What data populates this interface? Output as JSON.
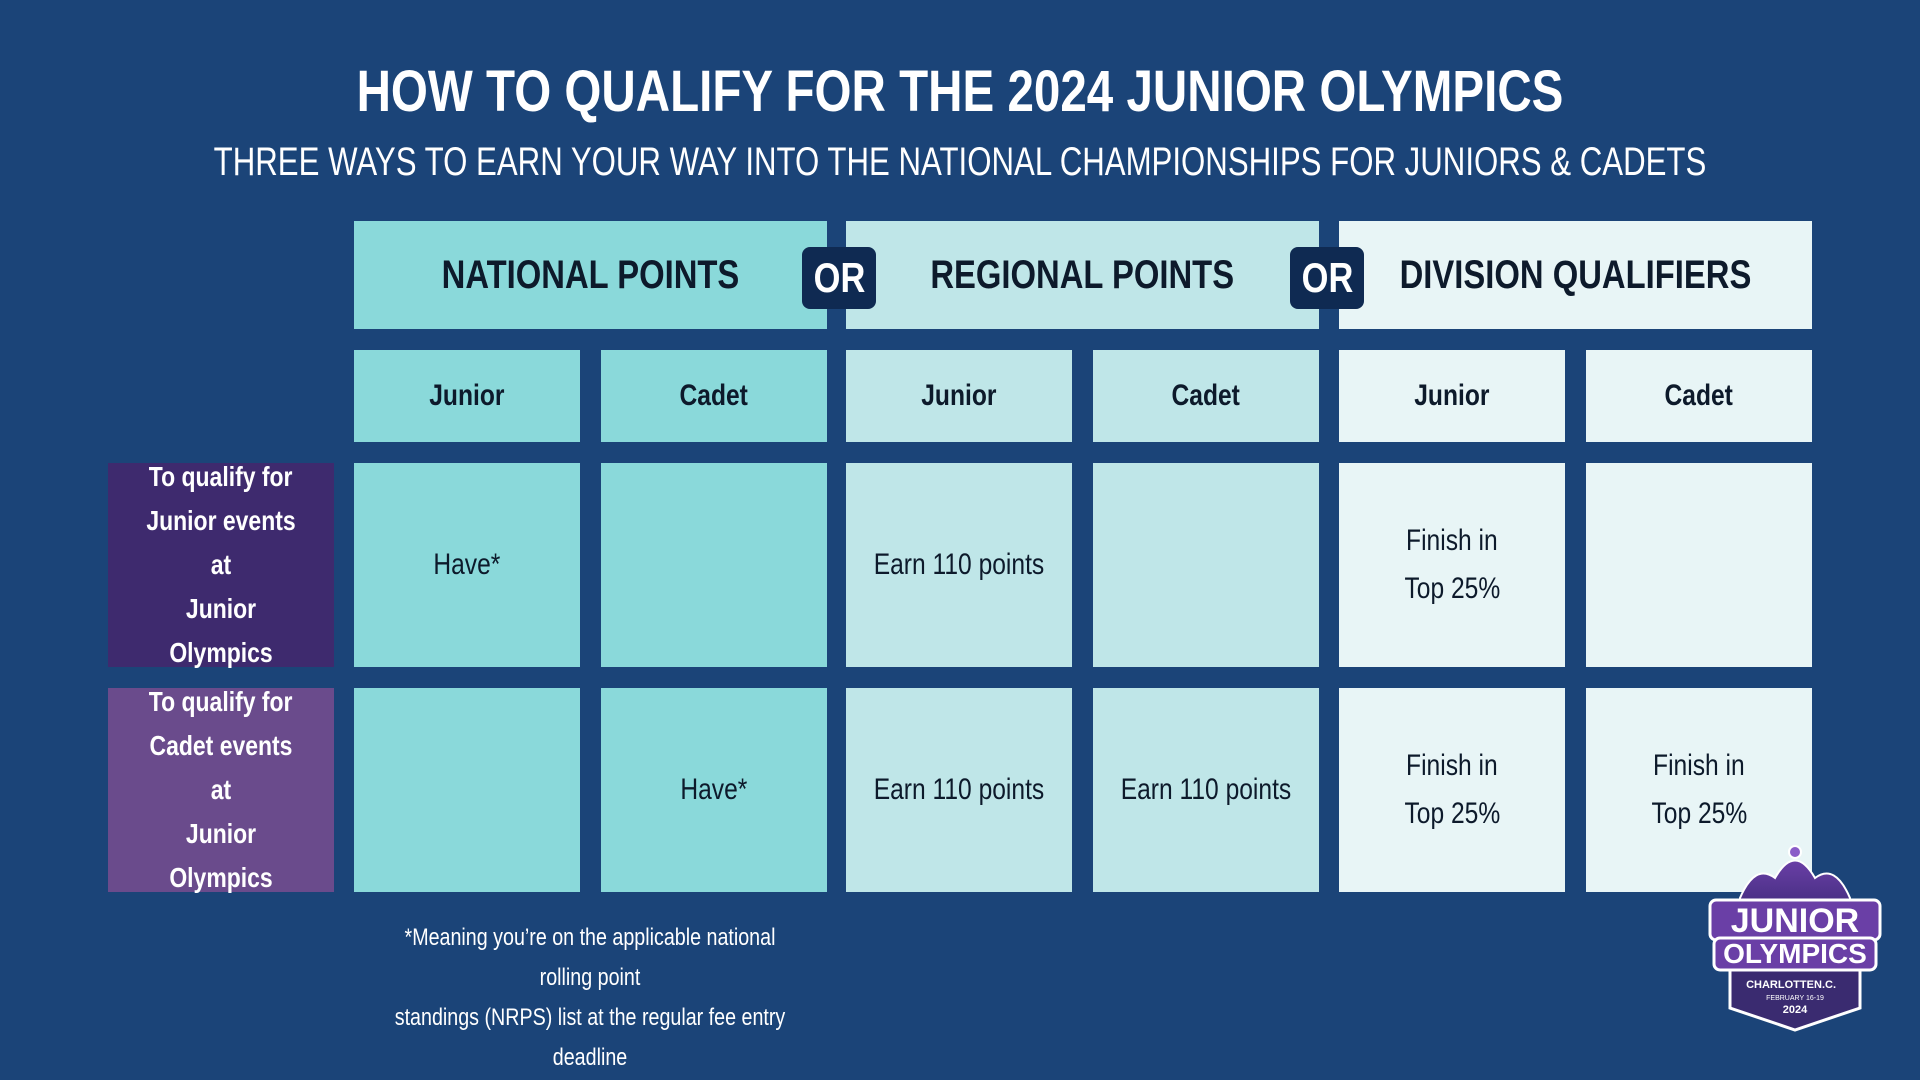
{
  "title": "HOW TO QUALIFY FOR THE 2024 JUNIOR OLYMPICS",
  "subtitle": "THREE WAYS TO EARN YOUR WAY INTO THE NATIONAL CHAMPIONSHIPS FOR JUNIORS & CADETS",
  "colors": {
    "background": "#1b4478",
    "national": "#8ad9da",
    "regional": "#bfe6e8",
    "division": "#e8f5f6",
    "row_junior": "#3e2a6e",
    "row_cadet": "#6a4b8c",
    "or_badge": "#0f2a52"
  },
  "columns": {
    "national": "NATIONAL POINTS",
    "regional": "REGIONAL POINTS",
    "division": "DIVISION QUALIFIERS",
    "or": "OR"
  },
  "sub_columns": {
    "nat_junior": "Junior",
    "nat_cadet": "Cadet",
    "reg_junior": "Junior",
    "reg_cadet": "Cadet",
    "div_junior": "Junior",
    "div_cadet": "Cadet"
  },
  "rows": {
    "junior": {
      "label_line1": "To qualify for",
      "label_line2": "Junior events at",
      "label_line3": "Junior Olympics",
      "nat_junior": "Have*",
      "nat_cadet": "",
      "reg_junior": "Earn 110 points",
      "reg_cadet": "",
      "div_junior_line1": "Finish in",
      "div_junior_line2": "Top 25%",
      "div_cadet_line1": "",
      "div_cadet_line2": ""
    },
    "cadet": {
      "label_line1": "To qualify for",
      "label_line2": "Cadet events at",
      "label_line3": "Junior Olympics",
      "nat_junior": "",
      "nat_cadet": "Have*",
      "reg_junior": "Earn 110 points",
      "reg_cadet": "Earn 110 points",
      "div_junior_line1": "Finish in",
      "div_junior_line2": "Top 25%",
      "div_cadet_line1": "Finish in",
      "div_cadet_line2": "Top 25%"
    }
  },
  "footnote": {
    "line1": "*Meaning you’re on the applicable national rolling point",
    "line2": "standings (NRPS) list at the regular fee entry deadline"
  },
  "logo": {
    "line1": "JUNIOR",
    "line2": "OLYMPICS",
    "city": "CHARLOTTE",
    "state": "N.C.",
    "dates": "FEBRUARY 16-19",
    "year": "2024"
  }
}
